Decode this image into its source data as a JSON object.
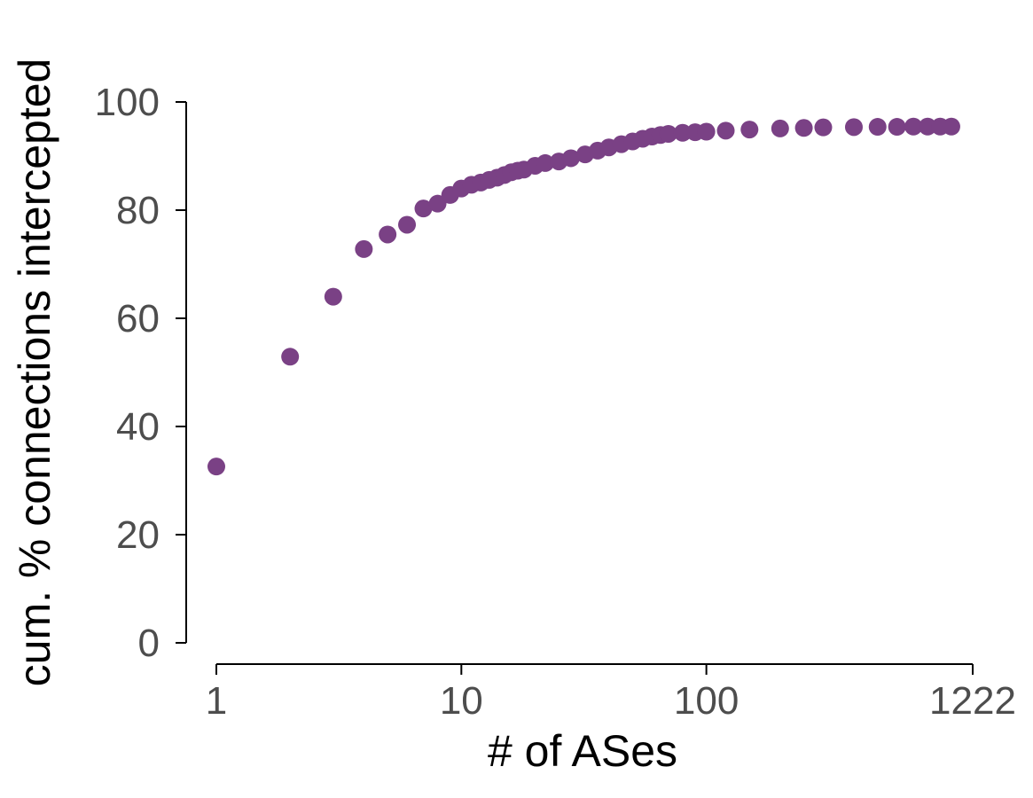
{
  "chart_data": {
    "type": "scatter",
    "title": "",
    "xlabel": "# of ASes",
    "ylabel": "cum. % connections intercepted",
    "x_scale": "log",
    "xlim": [
      1,
      1222
    ],
    "ylim": [
      0,
      100
    ],
    "xticks": [
      1,
      10,
      100,
      1222
    ],
    "xtick_labels": [
      "1",
      "10",
      "100",
      "1222"
    ],
    "yticks": [
      0,
      20,
      40,
      60,
      80,
      100
    ],
    "ytick_labels": [
      "0",
      "20",
      "40",
      "60",
      "80",
      "100"
    ],
    "grid": false,
    "legend": "none",
    "point_color": "#7a4185",
    "series": [
      {
        "x": [
          1,
          2,
          3,
          4,
          5,
          6,
          7,
          8,
          9,
          10,
          11,
          12,
          13,
          14,
          15,
          16,
          17,
          18,
          20,
          22,
          25,
          28,
          32,
          36,
          40,
          45,
          50,
          55,
          60,
          65,
          70,
          80,
          90,
          100,
          120,
          150,
          200,
          250,
          300,
          400,
          500,
          600,
          700,
          800,
          900,
          1000
        ],
        "y": [
          32.6,
          52.9,
          64.0,
          72.8,
          75.5,
          77.3,
          80.3,
          81.2,
          82.8,
          84.0,
          84.7,
          85.1,
          85.6,
          86.0,
          86.5,
          87.0,
          87.3,
          87.5,
          88.2,
          88.7,
          89.0,
          89.6,
          90.3,
          91.0,
          91.6,
          92.2,
          92.7,
          93.2,
          93.6,
          93.9,
          94.1,
          94.3,
          94.4,
          94.5,
          94.7,
          94.9,
          95.1,
          95.2,
          95.3,
          95.35,
          95.4,
          95.4,
          95.45,
          95.45,
          95.45,
          95.45
        ]
      }
    ]
  }
}
